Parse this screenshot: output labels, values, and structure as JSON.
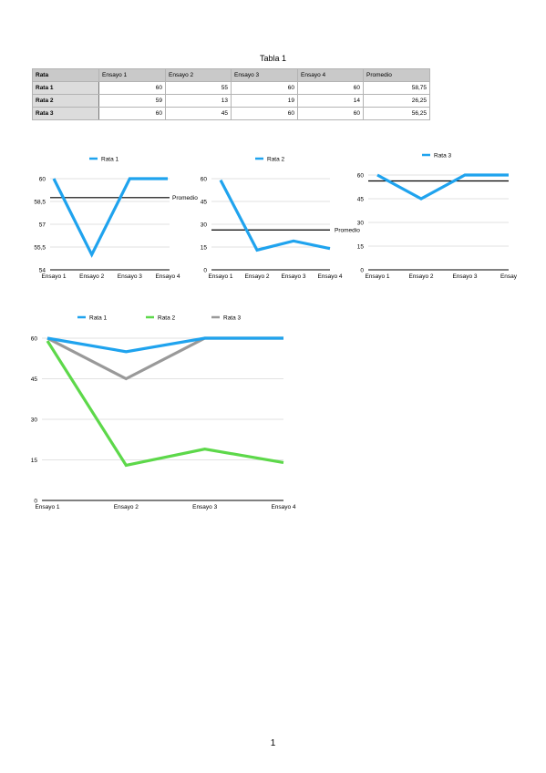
{
  "table": {
    "title": "Tabla 1",
    "header": [
      "Rata",
      "Ensayo 1",
      "Ensayo 2",
      "Ensayo 3",
      "Ensayo 4",
      "Promedio"
    ],
    "rows": [
      [
        "Rata 1",
        "60",
        "55",
        "60",
        "60",
        "58,75"
      ],
      [
        "Rata 2",
        "59",
        "13",
        "19",
        "14",
        "26,25"
      ],
      [
        "Rata 3",
        "60",
        "45",
        "60",
        "60",
        "56,25"
      ]
    ]
  },
  "colors": {
    "rata1": "#1fa3ee",
    "rata2": "#5dd84a",
    "rata3": "#999999",
    "promedio": "#000000",
    "grid": "#d9d9d9"
  },
  "chart_data": [
    {
      "type": "line",
      "categories": [
        "Ensayo 1",
        "Ensayo 2",
        "Ensayo 3",
        "Ensayo 4"
      ],
      "series": [
        {
          "name": "Rata 1",
          "values": [
            60,
            55,
            60,
            60
          ],
          "color": "#1fa3ee"
        }
      ],
      "average": {
        "label": "Promedio",
        "value": 58.75
      },
      "yticks": [
        54,
        55.5,
        57,
        58.5,
        60
      ],
      "ytick_labels": [
        "54",
        "55,5",
        "57",
        "58,5",
        "60"
      ],
      "ylim": [
        54,
        60
      ],
      "legend": "top"
    },
    {
      "type": "line",
      "categories": [
        "Ensayo 1",
        "Ensayo 2",
        "Ensayo 3",
        "Ensayo 4"
      ],
      "series": [
        {
          "name": "Rata 2",
          "values": [
            59,
            13,
            19,
            14
          ],
          "color": "#1fa3ee"
        }
      ],
      "average": {
        "label": "Promedio",
        "value": 26.25
      },
      "yticks": [
        0,
        15,
        30,
        45,
        60
      ],
      "ytick_labels": [
        "0",
        "15",
        "30",
        "45",
        "60"
      ],
      "ylim": [
        0,
        60
      ],
      "legend": "top"
    },
    {
      "type": "line",
      "categories": [
        "Ensayo 1",
        "Ensayo 2",
        "Ensayo 3",
        "Ensay"
      ],
      "series": [
        {
          "name": "Rata 3",
          "values": [
            60,
            45,
            60,
            60
          ],
          "color": "#1fa3ee"
        }
      ],
      "average": {
        "label": "",
        "value": 56.25
      },
      "yticks": [
        0,
        15,
        30,
        45,
        60
      ],
      "ytick_labels": [
        "0",
        "15",
        "30",
        "45",
        "60"
      ],
      "ylim": [
        0,
        60
      ],
      "legend": "top"
    },
    {
      "type": "line",
      "categories": [
        "Ensayo 1",
        "Ensayo 2",
        "Ensayo 3",
        "Ensayo 4"
      ],
      "series": [
        {
          "name": "Rata 1",
          "values": [
            60,
            55,
            60,
            60
          ],
          "color": "#1fa3ee"
        },
        {
          "name": "Rata 2",
          "values": [
            59,
            13,
            19,
            14
          ],
          "color": "#5dd84a"
        },
        {
          "name": "Rata 3",
          "values": [
            60,
            45,
            60,
            60
          ],
          "color": "#999999"
        }
      ],
      "yticks": [
        0,
        15,
        30,
        45,
        60
      ],
      "ytick_labels": [
        "0",
        "15",
        "30",
        "45",
        "60"
      ],
      "ylim": [
        0,
        60
      ],
      "legend": "top"
    }
  ],
  "page_number": "1"
}
